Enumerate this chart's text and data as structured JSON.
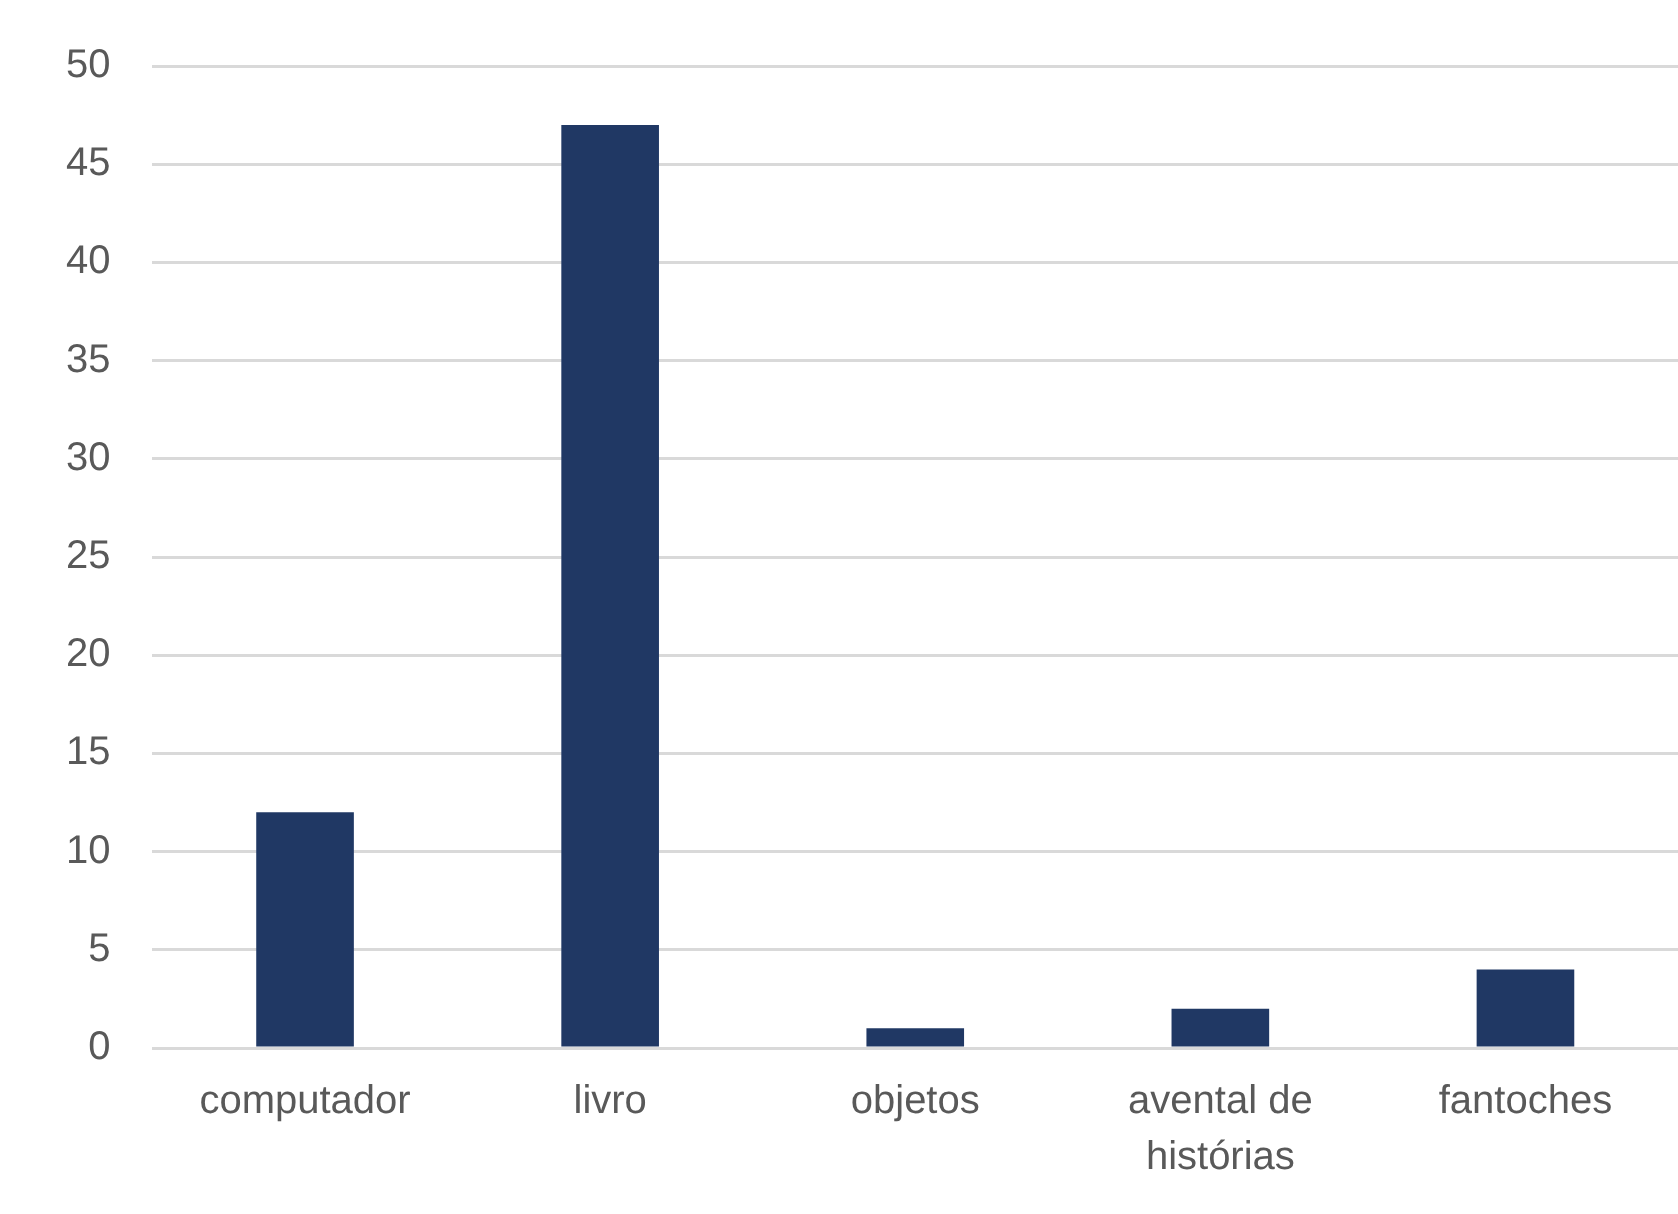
{
  "chart_data": {
    "type": "bar",
    "categories": [
      "computador",
      "livro",
      "objetos",
      "avental de histórias",
      "fantoches"
    ],
    "values": [
      12,
      47,
      1,
      2,
      4
    ],
    "color": "#203864",
    "ylim": [
      0,
      50
    ],
    "yticks": [
      0,
      5,
      10,
      15,
      20,
      25,
      30,
      35,
      40,
      45,
      50
    ],
    "grid": "y"
  }
}
